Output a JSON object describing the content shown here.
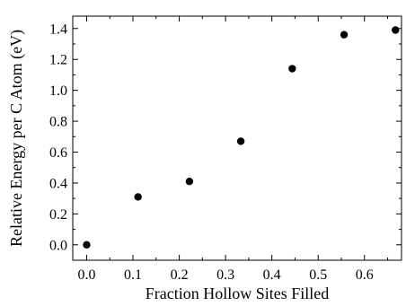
{
  "chart_data": {
    "type": "scatter",
    "xlabel": "Fraction Hollow Sites Filled",
    "ylabel": "Relative Energy per C Atom (eV)",
    "xlim": [
      -0.03,
      0.68
    ],
    "ylim": [
      -0.1,
      1.48
    ],
    "xticks": [
      0.0,
      0.1,
      0.2,
      0.3,
      0.4,
      0.5,
      0.6
    ],
    "xtick_labels": [
      "0.0",
      "0.1",
      "0.2",
      "0.3",
      "0.4",
      "0.5",
      "0.6"
    ],
    "yticks": [
      0.0,
      0.2,
      0.4,
      0.6,
      0.8,
      1.0,
      1.2,
      1.4
    ],
    "ytick_labels": [
      "0.0",
      "0.2",
      "0.4",
      "0.6",
      "0.8",
      "1.0",
      "1.2",
      "1.4"
    ],
    "grid": false,
    "marker_color": "#000000",
    "series": [
      {
        "x": [
          0.0,
          0.111,
          0.222,
          0.333,
          0.444,
          0.556,
          0.667
        ],
        "y": [
          0.0,
          0.31,
          0.41,
          0.67,
          1.14,
          1.36,
          1.39
        ]
      }
    ]
  }
}
